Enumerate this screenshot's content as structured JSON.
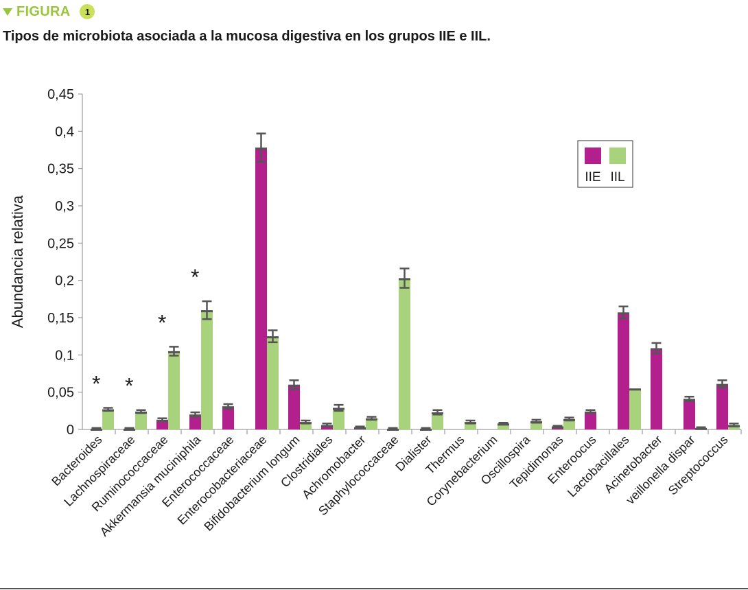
{
  "header": {
    "figure_label": "FIGURA",
    "figure_number": "1",
    "title": "Tipos de microbiota asociada a la mucosa digestiva en los grupos IIE e IIL."
  },
  "colors": {
    "accent": "#9bc53d",
    "IIE": "#b3208e",
    "IIL": "#a8d27c",
    "error_cap": "#555555"
  },
  "chart_data": {
    "type": "bar",
    "ylabel": "Abundancia relativa",
    "xlabel": "",
    "ylim": [
      0,
      0.45
    ],
    "yticks": [
      "0",
      "0,05",
      "0,1",
      "0,15",
      "0,2",
      "0,25",
      "0,3",
      "0,35",
      "0,4",
      "0,45"
    ],
    "legend": {
      "position": "top-right",
      "entries": [
        "IIE",
        "IIL"
      ]
    },
    "categories": [
      "Bacteroides",
      "Lachnospiraceae",
      "Ruminococcaceae",
      "Akkermansia muciniphila",
      "Enterococcaceae",
      "Enterocobacteriaceae",
      "Bifidobacterium longum",
      "Clostridiales",
      "Achromobacter",
      "Staphylococcaceae",
      "Dialister",
      "Thermus",
      "Corynebacterium",
      "Oscillospira",
      "Tepidimonas",
      "Enteroocus",
      "Lactobacillales",
      "Acinetobacter",
      "veillonella dispar",
      "Streptococcus"
    ],
    "series": [
      {
        "name": "IIE",
        "values": [
          0.001,
          0.001,
          0.013,
          0.02,
          0.031,
          0.378,
          0.06,
          0.006,
          0.003,
          0.001,
          0.001,
          0,
          0,
          0,
          0.004,
          0.024,
          0.157,
          0.109,
          0.041,
          0.061
        ],
        "errors": [
          0.001,
          0.001,
          0.002,
          0.003,
          0.003,
          0.019,
          0.006,
          0.002,
          0.001,
          0.001,
          0.001,
          0,
          0,
          0,
          0.001,
          0.002,
          0.008,
          0.007,
          0.003,
          0.005
        ]
      },
      {
        "name": "IIL",
        "values": [
          0.027,
          0.024,
          0.105,
          0.16,
          0,
          0.125,
          0.01,
          0.029,
          0.015,
          0.203,
          0.023,
          0.01,
          0.008,
          0.011,
          0.014,
          0,
          0.055,
          0,
          0.002,
          0.006
        ],
        "errors": [
          0.002,
          0.002,
          0.006,
          0.012,
          0,
          0.008,
          0.002,
          0.004,
          0.002,
          0.013,
          0.003,
          0.002,
          0.001,
          0.002,
          0.002,
          0,
          0,
          0,
          0.001,
          0.002
        ]
      }
    ],
    "significance_marker": "*",
    "significant_categories": [
      "Bacteroides",
      "Lachnospiraceae",
      "Ruminococcaceae",
      "Akkermansia muciniphila"
    ]
  }
}
